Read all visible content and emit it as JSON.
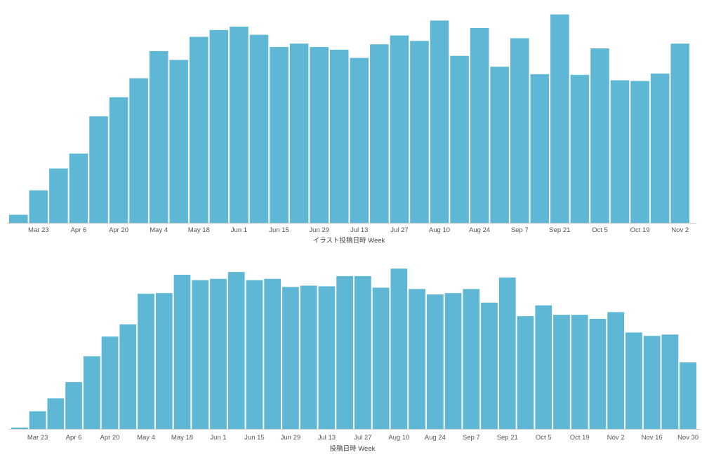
{
  "colors": {
    "bar": "#5eb8d5",
    "axis": "#cfcfcf",
    "text": "#555555"
  },
  "chart_data": [
    {
      "type": "bar",
      "xlabel": "イラスト投稿日時 Week",
      "ylabel": "",
      "grid": false,
      "ylim": [
        0,
        320
      ],
      "ticks": [
        "Mar 23",
        "Apr 6",
        "Apr 20",
        "May 4",
        "May 18",
        "Jun 1",
        "Jun 15",
        "Jun 29",
        "Jul 13",
        "Jul 27",
        "Aug 10",
        "Aug 24",
        "Sep 7",
        "Sep 21",
        "Oct 5",
        "Oct 19",
        "Nov 2"
      ],
      "first_tick_index": 1,
      "tick_step": 2,
      "values": [
        12,
        48,
        80,
        102,
        157,
        185,
        213,
        253,
        240,
        274,
        284,
        289,
        277,
        259,
        264,
        259,
        255,
        243,
        263,
        276,
        268,
        298,
        246,
        287,
        230,
        272,
        219,
        307,
        218,
        257,
        210,
        209,
        220,
        264
      ]
    },
    {
      "type": "bar",
      "xlabel": "投稿日時 Week",
      "ylabel": "",
      "grid": false,
      "ylim": [
        0,
        260
      ],
      "ticks": [
        "Mar 23",
        "Apr 6",
        "Apr 20",
        "May 4",
        "May 18",
        "Jun 1",
        "Jun 15",
        "Jun 29",
        "Jul 13",
        "Jul 27",
        "Aug 10",
        "Aug 24",
        "Sep 7",
        "Sep 21",
        "Oct 5",
        "Oct 19",
        "Nov 2",
        "Nov 16",
        "Nov 30"
      ],
      "first_tick_index": 1,
      "tick_step": 2,
      "values": [
        2,
        26,
        45,
        69,
        107,
        136,
        154,
        199,
        200,
        227,
        219,
        221,
        231,
        219,
        221,
        209,
        211,
        210,
        225,
        225,
        208,
        236,
        206,
        198,
        200,
        206,
        186,
        223,
        166,
        182,
        168,
        168,
        162,
        172,
        142,
        137,
        139,
        98
      ]
    }
  ]
}
